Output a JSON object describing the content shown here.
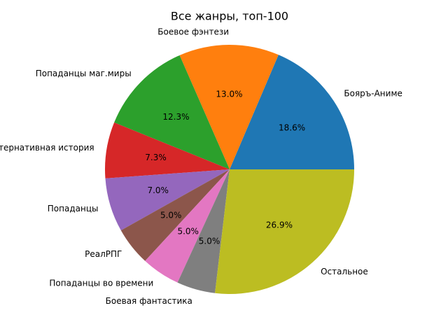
{
  "chart_data": {
    "type": "pie",
    "title": "Все жанры, топ-100",
    "categories": [
      "Бояръ-Аниме",
      "Боевое фэнтези",
      "Попаданцы маг.миры",
      "Альтернативная история",
      "Попаданцы",
      "РеалРПГ",
      "Попаданцы во времени",
      "Боевая фантастика",
      "Остальное"
    ],
    "values": [
      18.6,
      13.0,
      12.3,
      7.3,
      7.0,
      5.0,
      5.0,
      5.0,
      26.9
    ],
    "value_labels": [
      "18.6%",
      "13.0%",
      "12.3%",
      "7.3%",
      "7.0%",
      "5.0%",
      "5.0%",
      "5.0%",
      "26.9%"
    ],
    "colors": [
      "#1f77b4",
      "#ff7f0e",
      "#2ca02c",
      "#d62728",
      "#9467bd",
      "#8c564b",
      "#e377c2",
      "#7f7f7f",
      "#bcbd22"
    ]
  }
}
